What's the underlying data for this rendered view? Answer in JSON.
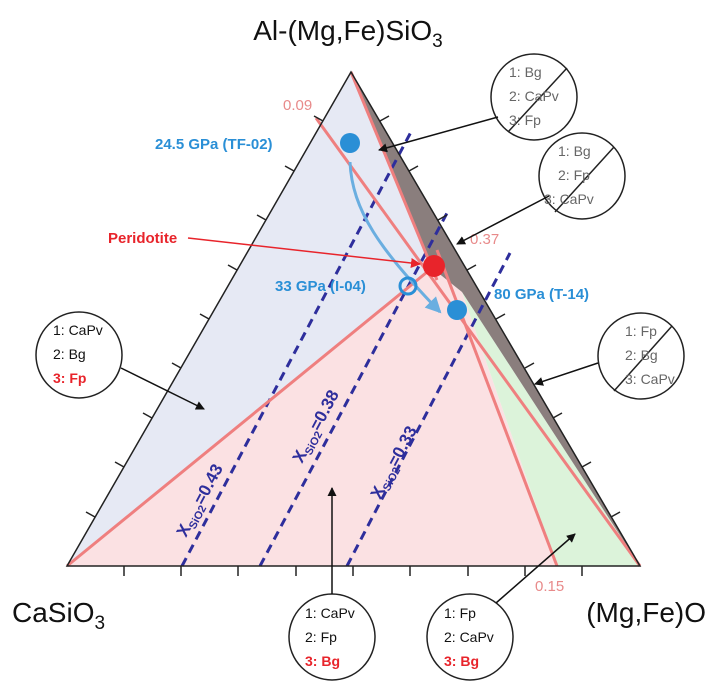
{
  "vertices": {
    "top": {
      "main": "Al-(Mg,Fe)SiO",
      "sub": "3"
    },
    "left": {
      "main": "CaSiO",
      "sub": "3"
    },
    "right": {
      "main": "(Mg,Fe)O"
    }
  },
  "boundary_values": {
    "top_left": "0.09",
    "mid_right": "0.37",
    "bottom_right": "0.15"
  },
  "points": {
    "tf02": "24.5 GPa (TF-02)",
    "i04": "33 GPa (I-04)",
    "t14": "80 GPa (T-14)",
    "peridotite": "Peridotite"
  },
  "isopleths": [
    {
      "prefix": "X",
      "sub": "SiO2",
      "value": "=0.43"
    },
    {
      "prefix": "X",
      "sub": "SiO2",
      "value": "=0.38"
    },
    {
      "prefix": "X",
      "sub": "SiO2",
      "value": "=0.33"
    }
  ],
  "phase_circles": {
    "top": {
      "l1": "1: Bg",
      "l2": "2: CaPv",
      "l3": "3: Fp"
    },
    "upper_right": {
      "l1": "1: Bg",
      "l2": "2: Fp",
      "l3": "3: CaPv"
    },
    "right": {
      "l1": "1: Fp",
      "l2": "2: Bg",
      "l3": "3: CaPv"
    },
    "left": {
      "l1": "1: CaPv",
      "l2": "2: Bg",
      "l3": "3: Fp"
    },
    "bottom_mid": {
      "l1": "1: CaPv",
      "l2": "2: Fp",
      "l3": "3: Bg"
    },
    "bottom_right": {
      "l1": "1: Fp",
      "l2": "2: CaPv",
      "l3": "3: Bg"
    }
  },
  "colors": {
    "field_blue": "#e6e9f4",
    "field_pink": "#fbe1e3",
    "field_green": "#dcf3da",
    "field_dark": "#8a7e7d",
    "boundary": "#ef7f7f",
    "isopleth": "#2e2e9c",
    "point_blue": "#2a8fd6",
    "peridotite": "#e8242b"
  }
}
